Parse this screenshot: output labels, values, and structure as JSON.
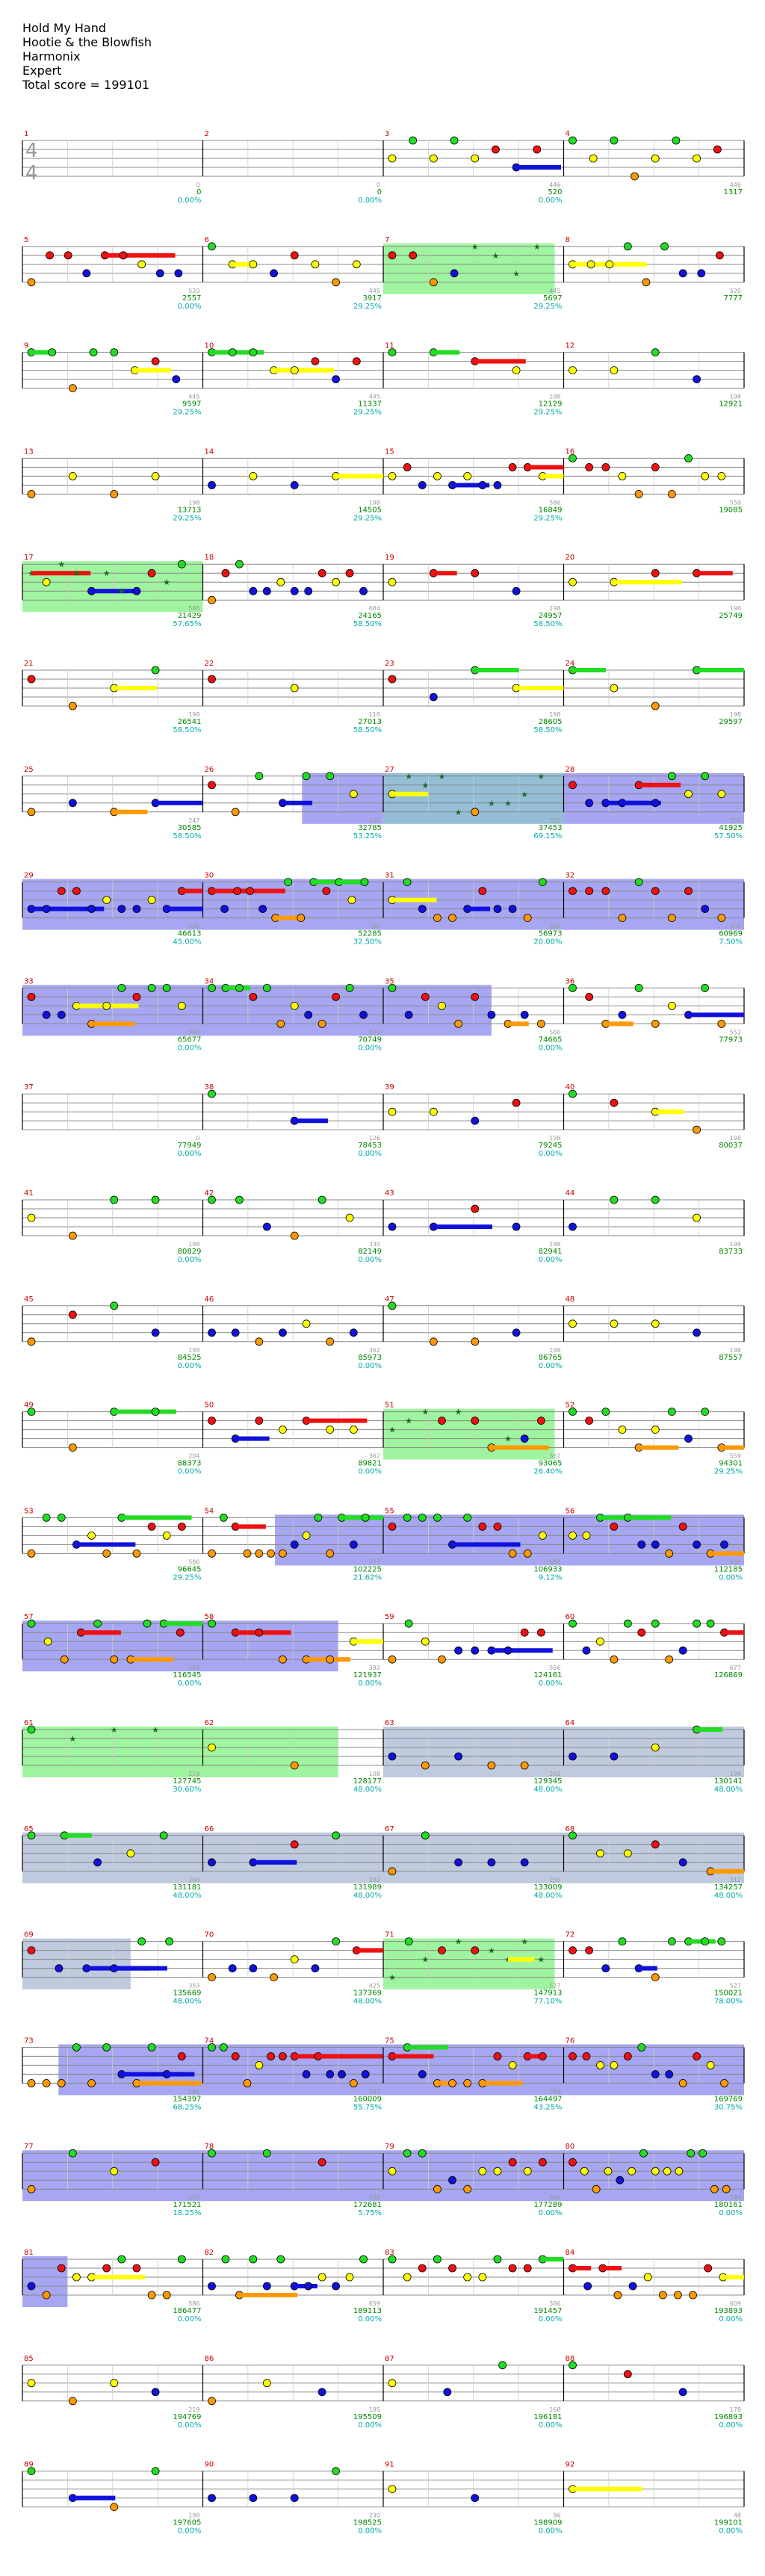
{
  "header": {
    "song_title": "Hold My Hand",
    "artist": "Hootie & the Blowfish",
    "charter": "Harmonix",
    "difficulty": "Expert",
    "total_score": "Total score = 199101"
  },
  "time_signature": "4/4",
  "colors": {
    "green": "#22dd22",
    "red": "#ee1111",
    "yellow": "#ffff00",
    "blue": "#1111dd",
    "orange": "#ff9900",
    "star_power": "#7ff07f",
    "overdrive": "#8888ee",
    "solo": "#b8c4dc",
    "measure_number": "#cc0000",
    "score_text": "#008800",
    "percent_text": "#00aaaa"
  },
  "measure_numbers": [
    "1",
    "2",
    "3",
    "4",
    "5",
    "6",
    "7",
    "8",
    "9",
    "10",
    "11",
    "12",
    "13",
    "14",
    "15",
    "16",
    "17",
    "18",
    "19",
    "20",
    "21",
    "22",
    "23",
    "24",
    "25",
    "26",
    "27",
    "28",
    "29",
    "30",
    "31",
    "32",
    "33",
    "34",
    "35",
    "36",
    "37",
    "38",
    "39",
    "40",
    "41",
    "42",
    "43",
    "44",
    "45",
    "46",
    "47",
    "48",
    "49",
    "50",
    "51",
    "52",
    "53",
    "54",
    "55",
    "56",
    "57",
    "58",
    "59",
    "60",
    "61",
    "62",
    "63",
    "64",
    "65",
    "66",
    "67",
    "68",
    "69",
    "70",
    "71",
    "72",
    "73",
    "74",
    "75",
    "76",
    "77",
    "78",
    "79",
    "80",
    "81",
    "82",
    "83",
    "84",
    "85",
    "86",
    "87",
    "88",
    "89",
    "90",
    "91",
    "92"
  ],
  "rows": [
    {
      "scores": [
        "0",
        "0",
        "520",
        "1317"
      ],
      "percents": [
        "0.00%",
        "0.00%",
        "0.00%"
      ],
      "notes": [
        "0",
        "0",
        "446",
        "446"
      ]
    },
    {
      "scores": [
        "2557",
        "3917",
        "5697",
        "7777"
      ],
      "percents": [
        "0.00%",
        "29.25%",
        "29.25%"
      ],
      "notes": [
        "520",
        "445",
        "445",
        "520"
      ]
    },
    {
      "scores": [
        "9597",
        "11337",
        "12129",
        "12921"
      ],
      "percents": [
        "29.25%",
        "29.25%",
        "29.25%"
      ],
      "notes": [
        "445",
        "445",
        "198",
        "198"
      ]
    },
    {
      "scores": [
        "13713",
        "14505",
        "16849",
        "19085"
      ],
      "percents": [
        "29.25%",
        "29.25%",
        "29.25%"
      ],
      "notes": [
        "198",
        "198",
        "586",
        "559"
      ]
    },
    {
      "scores": [
        "21429",
        "24165",
        "24957",
        "25749"
      ],
      "percents": [
        "57.65%",
        "58.50%",
        "58.50%"
      ],
      "notes": [
        "586",
        "684",
        "198",
        "198"
      ]
    },
    {
      "scores": [
        "26541",
        "27013",
        "28605",
        "29597"
      ],
      "percents": [
        "58.50%",
        "58.50%",
        "58.50%"
      ],
      "notes": [
        "198",
        "118",
        "198",
        "198"
      ]
    },
    {
      "scores": [
        "30585",
        "32785",
        "37453",
        "41925"
      ],
      "percents": [
        "58.50%",
        "53.25%",
        "69.15%",
        "57.50%"
      ],
      "notes": [
        "247",
        "400",
        "559",
        "559"
      ]
    },
    {
      "scores": [
        "46613",
        "52285",
        "56973",
        "60969"
      ],
      "percents": [
        "45.00%",
        "32.50%",
        "20.00%",
        "7.50%"
      ],
      "notes": [
        "586",
        "709",
        "586",
        "559"
      ]
    },
    {
      "scores": [
        "65677",
        "70749",
        "74665",
        "77973"
      ],
      "percents": [
        "0.00%",
        "0.00%",
        "0.00%"
      ],
      "notes": [
        "586",
        "634",
        "560",
        "552"
      ]
    },
    {
      "scores": [
        "77949",
        "78453",
        "79245",
        "80037"
      ],
      "percents": [
        "0.00%",
        "0.00%",
        "0.00%"
      ],
      "notes": [
        "0",
        "126",
        "198",
        "198"
      ]
    },
    {
      "scores": [
        "80829",
        "82149",
        "82941",
        "83733"
      ],
      "percents": [
        "0.00%",
        "0.00%",
        "0.00%"
      ],
      "notes": [
        "198",
        "330",
        "198",
        "198"
      ]
    },
    {
      "scores": [
        "84525",
        "85973",
        "86765",
        "87557"
      ],
      "percents": [
        "0.00%",
        "0.00%",
        "0.00%"
      ],
      "notes": [
        "198",
        "362",
        "198",
        "198"
      ]
    },
    {
      "scores": [
        "88373",
        "89821",
        "93065",
        "94301"
      ],
      "percents": [
        "0.00%",
        "0.00%",
        "26.40%",
        "29.25%"
      ],
      "notes": [
        "204",
        "362",
        "561",
        "559"
      ]
    },
    {
      "scores": [
        "96645",
        "102225",
        "106933",
        "112185"
      ],
      "percents": [
        "29.25%",
        "21.62%",
        "9.12%",
        "0.00%"
      ],
      "notes": [
        "586",
        "777",
        "588",
        "656"
      ]
    },
    {
      "scores": [
        "116545",
        "121937",
        "124161",
        "126869"
      ],
      "percents": [
        "0.00%",
        "0.00%",
        "0.00%"
      ],
      "notes": [
        "545",
        "392",
        "556",
        "677"
      ]
    },
    {
      "scores": [
        "127745",
        "128177",
        "129345",
        "130141"
      ],
      "percents": [
        "30.60%",
        "48.00%",
        "48.00%",
        "48.00%"
      ],
      "notes": [
        "219",
        "108",
        "292",
        "199"
      ]
    },
    {
      "scores": [
        "131181",
        "131989",
        "133009",
        "134257"
      ],
      "percents": [
        "48.00%",
        "48.00%",
        "48.00%",
        "48.00%"
      ],
      "notes": [
        "260",
        "202",
        "255",
        "312"
      ]
    },
    {
      "scores": [
        "135669",
        "137369",
        "147913",
        "150021"
      ],
      "percents": [
        "48.00%",
        "48.00%",
        "77.10%",
        "78.00%"
      ],
      "notes": [
        "353",
        "425",
        "527",
        "527"
      ]
    },
    {
      "scores": [
        "154397",
        "160009",
        "164497",
        "169769"
      ],
      "percents": [
        "68.25%",
        "55.75%",
        "43.25%",
        "30.75%"
      ],
      "notes": [
        "586",
        "780",
        "586",
        "634"
      ]
    },
    {
      "scores": [
        "171521",
        "172681",
        "177289",
        "180161"
      ],
      "percents": [
        "18.25%",
        "5.75%",
        "0.00%",
        "0.00%"
      ],
      "notes": [
        "219",
        "138",
        "596",
        "794"
      ]
    },
    {
      "scores": [
        "186477",
        "189113",
        "191457",
        "193893"
      ],
      "percents": [
        "0.00%",
        "0.00%",
        "0.00%",
        "0.00%"
      ],
      "notes": [
        "586",
        "659",
        "586",
        "609"
      ]
    },
    {
      "scores": [
        "194769",
        "195509",
        "196181",
        "196893"
      ],
      "percents": [
        "0.00%",
        "0.00%",
        "0.00%",
        "0.00%"
      ],
      "notes": [
        "219",
        "185",
        "168",
        "178"
      ]
    },
    {
      "scores": [
        "197605",
        "198525",
        "198909",
        "199101"
      ],
      "percents": [
        "0.00%",
        "0.00%",
        "0.00%",
        "0.00%"
      ],
      "notes": [
        "198",
        "230",
        "96",
        "48"
      ]
    }
  ]
}
